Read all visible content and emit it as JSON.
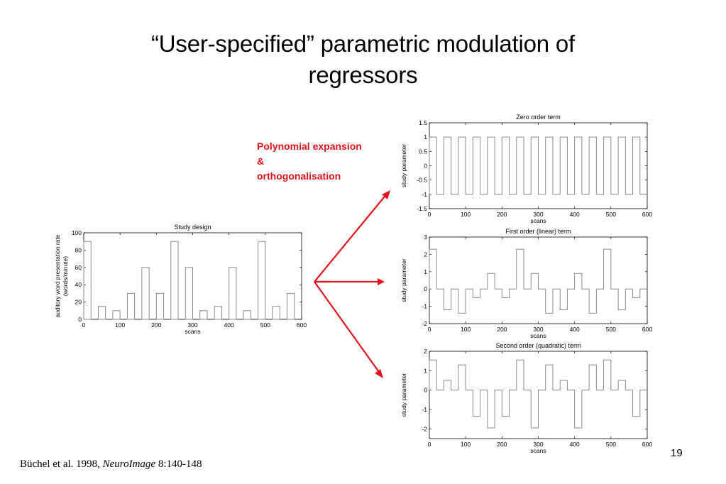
{
  "slide": {
    "title_line1": "“User-specified” parametric modulation of",
    "title_line2": "regressors",
    "annotation_line1": "Polynomial expansion",
    "annotation_line2": "&",
    "annotation_line3": "orthogonalisation",
    "citation_prefix": "Büchel et al. 1998, ",
    "citation_journal": "NeuroImage",
    "citation_suffix": " 8:140-148",
    "page_number": "19",
    "annotation_color": "#e0141b",
    "arrow_color": "#e0141b"
  },
  "chart_data": [
    {
      "type": "bar",
      "title": "Study design",
      "xlabel": "scans",
      "ylabel_line1": "auditory word presentation rate",
      "ylabel_line2": "(words/minute)",
      "xlim": [
        0,
        600
      ],
      "ylim": [
        0,
        100
      ],
      "xticks": [
        0,
        100,
        200,
        300,
        400,
        500,
        600
      ],
      "yticks": [
        0,
        20,
        40,
        60,
        80,
        100
      ],
      "block_width": 20,
      "x": [
        10,
        50,
        90,
        130,
        170,
        210,
        250,
        290,
        330,
        370,
        410,
        450,
        490,
        530,
        570
      ],
      "values": [
        90,
        15,
        10,
        30,
        60,
        30,
        90,
        60,
        10,
        15,
        60,
        10,
        90,
        15,
        30
      ]
    },
    {
      "type": "line",
      "title": "Zero order term",
      "xlabel": "scans",
      "ylabel": "study parameter",
      "xlim": [
        0,
        600
      ],
      "ylim": [
        -1.5,
        1.5
      ],
      "xticks": [
        0,
        100,
        200,
        300,
        400,
        500,
        600
      ],
      "yticks": [
        -1.5,
        -1,
        -0.5,
        0,
        0.5,
        1,
        1.5
      ],
      "block_width": 20,
      "x": [
        10,
        50,
        90,
        130,
        170,
        210,
        250,
        290,
        330,
        370,
        410,
        450,
        490,
        530,
        570
      ],
      "values": [
        1,
        1,
        1,
        1,
        1,
        1,
        1,
        1,
        1,
        1,
        1,
        1,
        1,
        1,
        1
      ],
      "baseline": -1
    },
    {
      "type": "line",
      "title": "First order (linear) term",
      "xlabel": "scans",
      "ylabel": "study parameter",
      "xlim": [
        0,
        600
      ],
      "ylim": [
        -2,
        3
      ],
      "xticks": [
        0,
        100,
        200,
        300,
        400,
        500,
        600
      ],
      "yticks": [
        -2,
        -1,
        0,
        1,
        2,
        3
      ],
      "block_width": 20,
      "x": [
        10,
        50,
        90,
        130,
        170,
        210,
        250,
        290,
        330,
        370,
        410,
        450,
        490,
        530,
        570
      ],
      "values": [
        2.3,
        -1.2,
        -1.4,
        -0.5,
        0.9,
        -0.5,
        2.3,
        0.9,
        -1.4,
        -1.2,
        0.9,
        -1.4,
        2.3,
        -1.2,
        -0.5
      ],
      "baseline": 0
    },
    {
      "type": "line",
      "title": "Second order (quadratic) term",
      "xlabel": "scans",
      "ylabel": "study parameter",
      "xlim": [
        0,
        600
      ],
      "ylim": [
        -2.5,
        2
      ],
      "xticks": [
        0,
        100,
        200,
        300,
        400,
        500,
        600
      ],
      "yticks": [
        -2,
        -1,
        0,
        1,
        2
      ],
      "block_width": 20,
      "x": [
        10,
        50,
        90,
        130,
        170,
        210,
        250,
        290,
        330,
        370,
        410,
        450,
        490,
        530,
        570
      ],
      "values": [
        1.55,
        0.5,
        1.3,
        -1.35,
        -1.95,
        -1.35,
        1.55,
        -1.95,
        1.3,
        0.5,
        -1.95,
        1.3,
        1.55,
        0.5,
        -1.35
      ],
      "baseline": 0
    }
  ]
}
